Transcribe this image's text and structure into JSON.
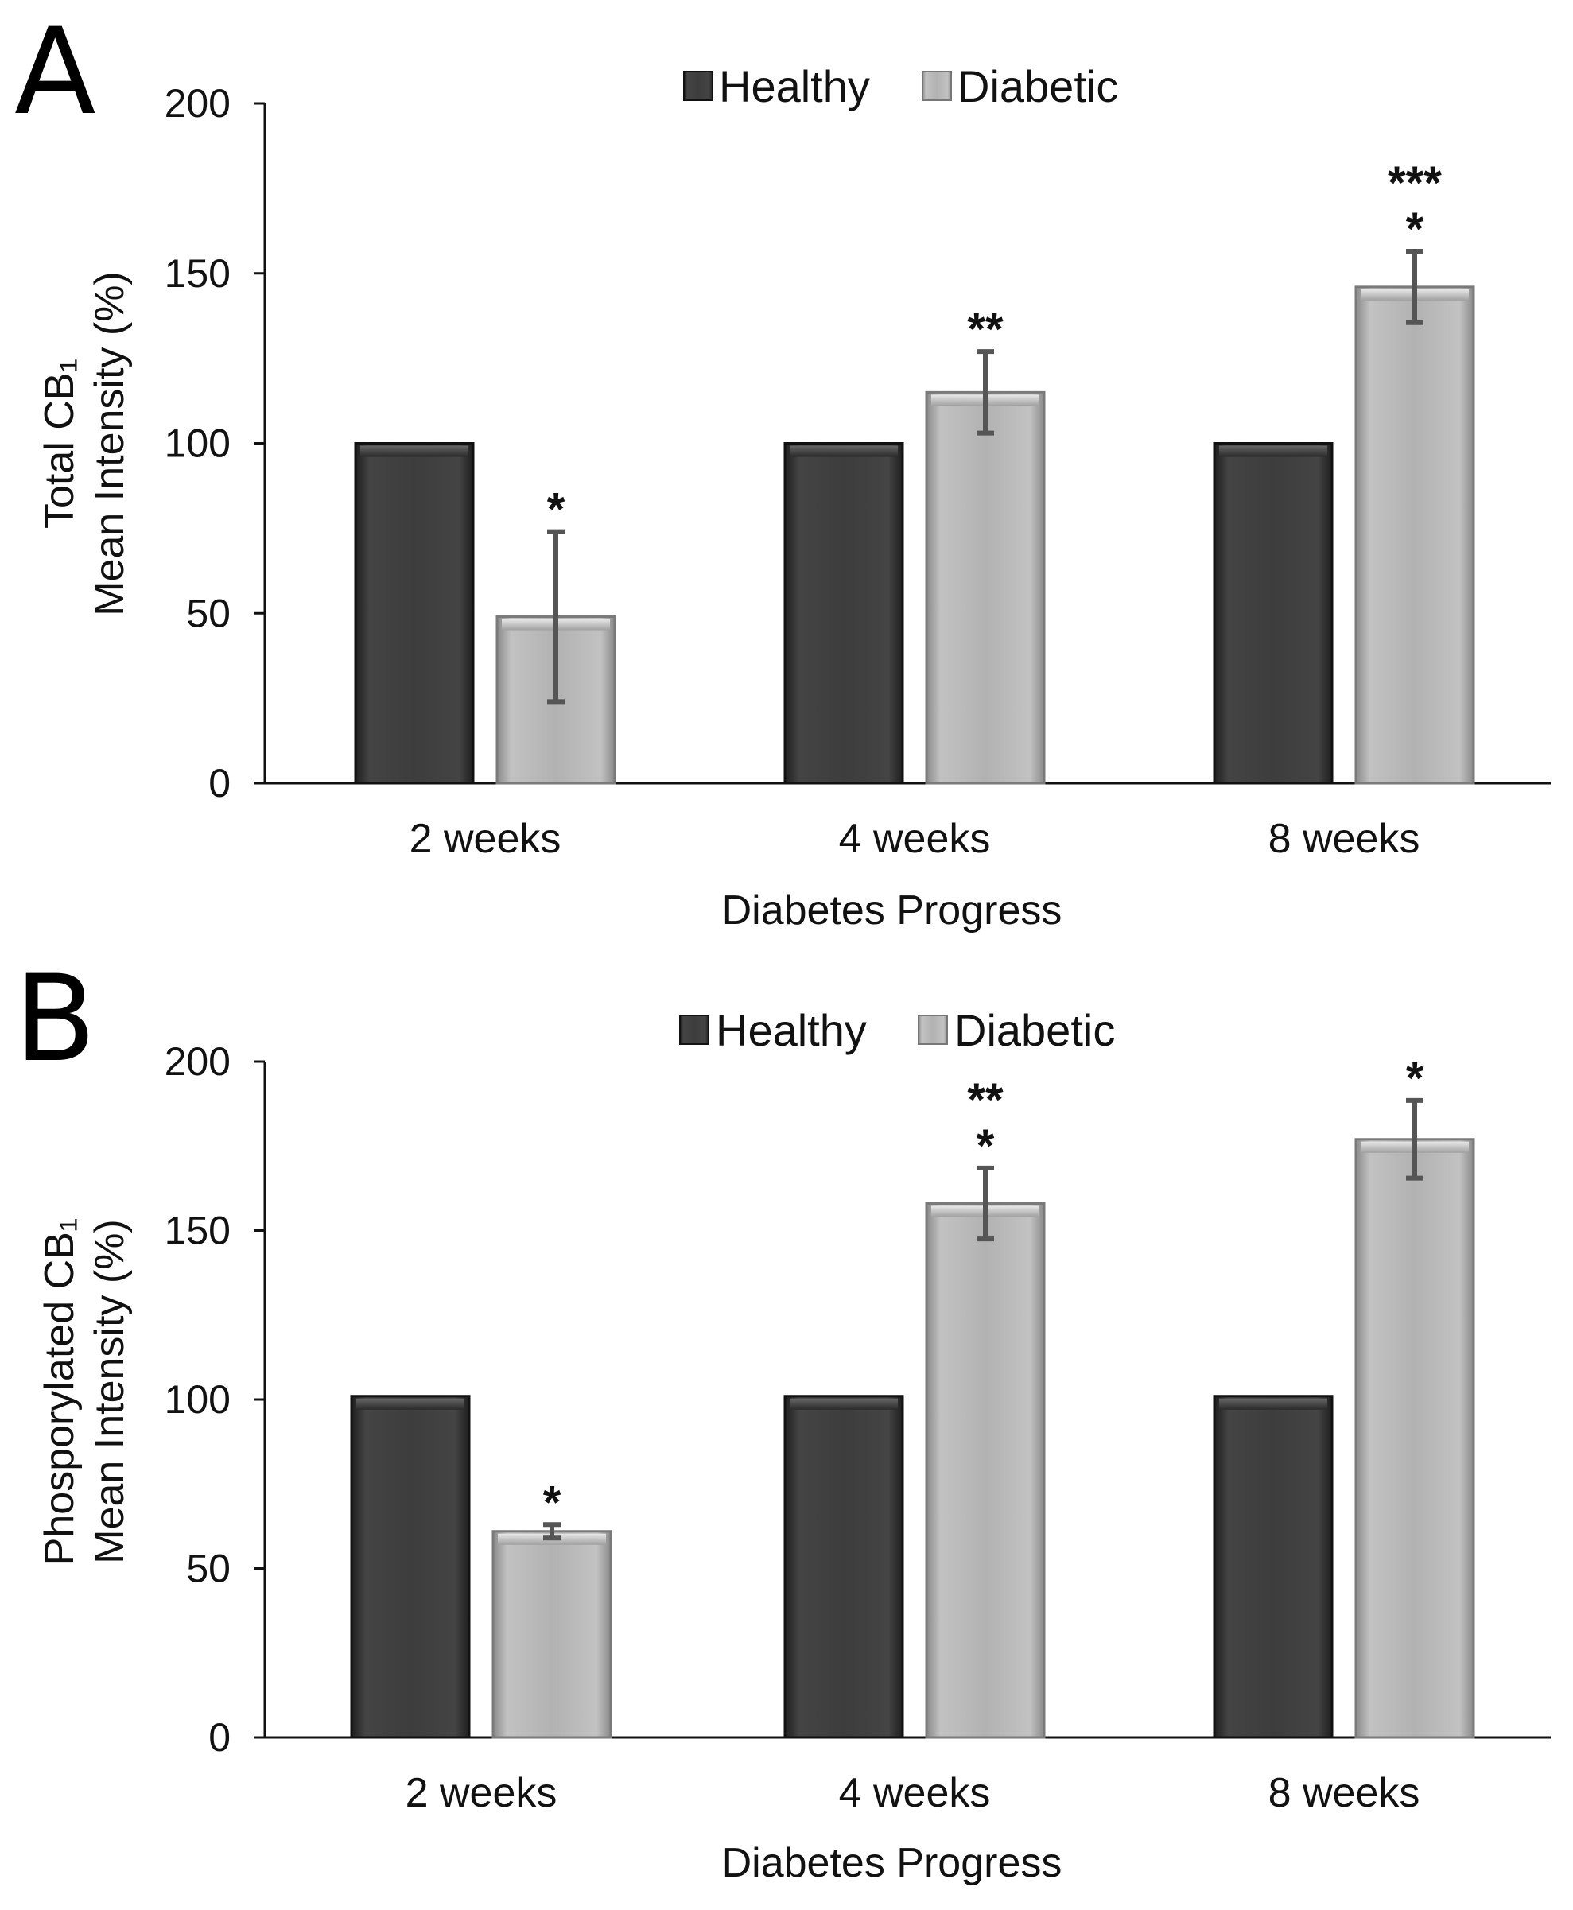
{
  "figure": {
    "panels": [
      "A",
      "B"
    ]
  },
  "colors": {
    "healthy": "#3d3d3d",
    "diabetic": "#b2b2b2",
    "error_bar": "#555555"
  },
  "chart_data": [
    {
      "type": "bar",
      "panel": "A",
      "categories": [
        "2 weeks",
        "4 weeks",
        "8 weeks"
      ],
      "series": [
        {
          "name": "Healthy",
          "values": [
            100,
            100,
            100
          ]
        },
        {
          "name": "Diabetic",
          "values": [
            49,
            115,
            146
          ],
          "errors": [
            25,
            12,
            10.5
          ]
        }
      ],
      "annotations": [
        {
          "category": "2 weeks",
          "series": "Diabetic",
          "lines": [
            "*"
          ]
        },
        {
          "category": "4 weeks",
          "series": "Diabetic",
          "lines": [
            "**"
          ]
        },
        {
          "category": "8 weeks",
          "series": "Diabetic",
          "lines": [
            "***",
            "*"
          ]
        }
      ],
      "ylim": [
        0,
        200
      ],
      "yticks": [
        0,
        50,
        100,
        150,
        200
      ],
      "ylabel_lines": [
        "Total CB₁",
        "Mean Intensity (%)"
      ],
      "xlabel": "Diabetes Progress",
      "legend": [
        "Healthy",
        "Diabetic"
      ],
      "legend_position": "top"
    },
    {
      "type": "bar",
      "panel": "B",
      "categories": [
        "2 weeks",
        "4 weeks",
        "8 weeks"
      ],
      "series": [
        {
          "name": "Healthy",
          "values": [
            101,
            101,
            101
          ]
        },
        {
          "name": "Diabetic",
          "values": [
            61,
            158,
            177
          ],
          "errors": [
            2,
            10.5,
            11.5
          ]
        }
      ],
      "annotations": [
        {
          "category": "2 weeks",
          "series": "Diabetic",
          "lines": [
            "*"
          ]
        },
        {
          "category": "4 weeks",
          "series": "Diabetic",
          "lines": [
            "**",
            "*"
          ]
        },
        {
          "category": "8 weeks",
          "series": "Diabetic",
          "lines": [
            "*"
          ]
        }
      ],
      "ylim": [
        0,
        200
      ],
      "yticks": [
        0,
        50,
        100,
        150,
        200
      ],
      "ylabel_lines": [
        "Phosporylated CB₁",
        "Mean Intensity (%)"
      ],
      "xlabel": "Diabetes Progress",
      "legend": [
        "Healthy",
        "Diabetic"
      ],
      "legend_position": "top"
    }
  ]
}
